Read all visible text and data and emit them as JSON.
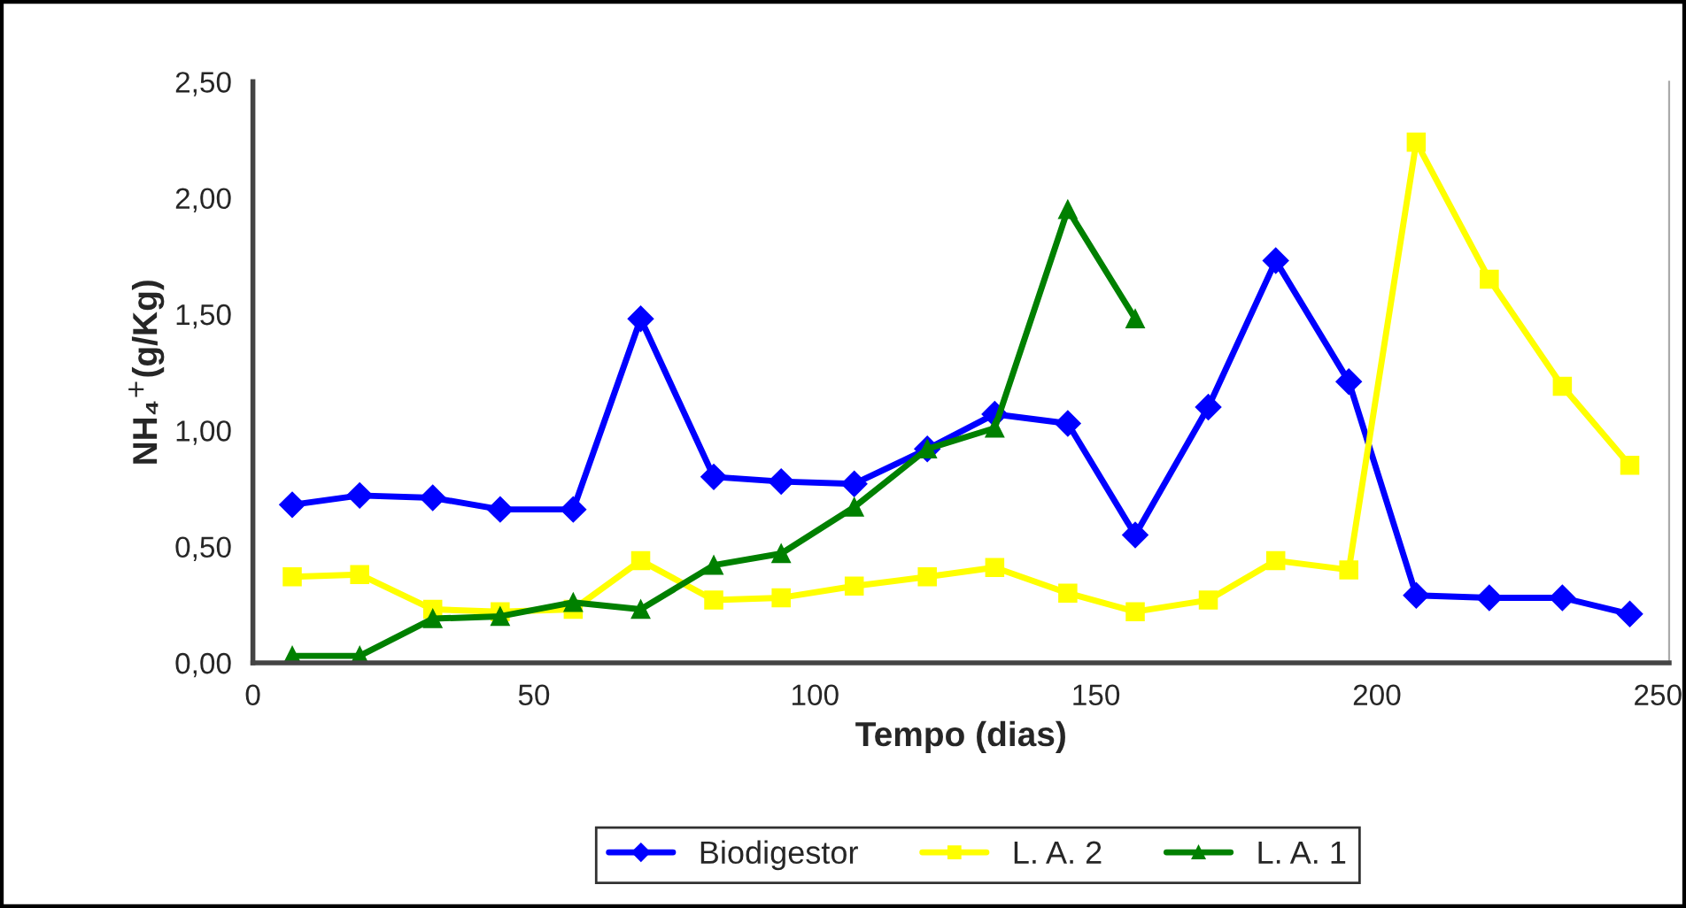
{
  "chart_data": {
    "type": "line",
    "xlabel": "Tempo (dias)",
    "ylabel": "NH₄$^{+}$(g/Kg)",
    "x": [
      7,
      19,
      32,
      44,
      57,
      69,
      82,
      94,
      107,
      120,
      132,
      145,
      157,
      170,
      182,
      195,
      207,
      220,
      233,
      245
    ],
    "series": [
      {
        "name": "Biodigestor",
        "color": "#0000ff",
        "marker": "diamond",
        "values": [
          0.68,
          0.72,
          0.71,
          0.66,
          0.66,
          1.48,
          0.8,
          0.78,
          0.77,
          0.92,
          1.07,
          1.03,
          0.55,
          1.1,
          1.73,
          1.21,
          0.29,
          0.28,
          0.28,
          0.21
        ]
      },
      {
        "name": "L. A. 2",
        "color": "#ffff00",
        "marker": "square",
        "values": [
          0.37,
          0.38,
          0.23,
          0.22,
          0.23,
          0.44,
          0.27,
          0.28,
          0.33,
          0.37,
          0.41,
          0.3,
          0.22,
          0.27,
          0.44,
          0.4,
          2.24,
          1.65,
          1.19,
          0.85
        ]
      },
      {
        "name": "L. A. 1",
        "color": "#008000",
        "marker": "triangle",
        "x": [
          7,
          19,
          32,
          44,
          57,
          69,
          82,
          94,
          107,
          120,
          132,
          145,
          157
        ],
        "values": [
          0.03,
          0.03,
          0.19,
          0.2,
          0.26,
          0.23,
          0.42,
          0.47,
          0.67,
          0.92,
          1.01,
          1.95,
          1.48
        ]
      }
    ],
    "xlim": [
      0,
      252
    ],
    "xticks": [
      0,
      50,
      100,
      150,
      200,
      250
    ],
    "ylim": [
      0,
      2.5
    ],
    "yticks": [
      {
        "value": 0,
        "label": "0,00"
      },
      {
        "value": 0.5,
        "label": "0,50"
      },
      {
        "value": 1,
        "label": "1,00"
      },
      {
        "value": 1.5,
        "label": "1,50"
      },
      {
        "value": 2,
        "label": "2,00"
      },
      {
        "value": 2.5,
        "label": "2,50"
      }
    ],
    "grid": false,
    "legend": "bottom"
  }
}
